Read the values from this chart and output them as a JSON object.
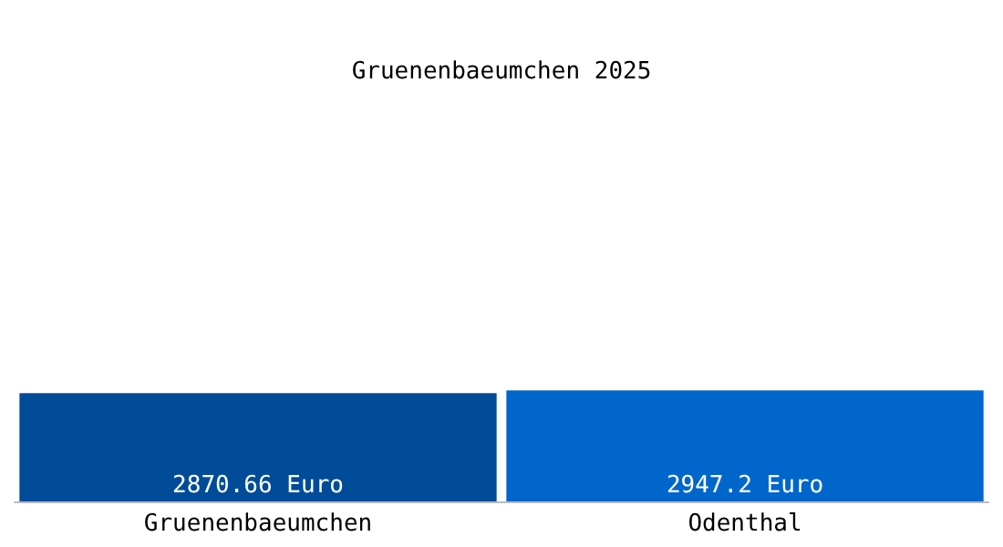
{
  "chart_data": {
    "type": "bar",
    "title": "Gruenenbaeumchen 2025",
    "categories": [
      "Gruenenbaeumchen",
      "Odenthal"
    ],
    "values": [
      2870.66,
      2947.2
    ],
    "colors": [
      "#004c99",
      "#0066cc"
    ],
    "value_labels": [
      "2870.66 Euro",
      "2947.2 Euro"
    ]
  }
}
